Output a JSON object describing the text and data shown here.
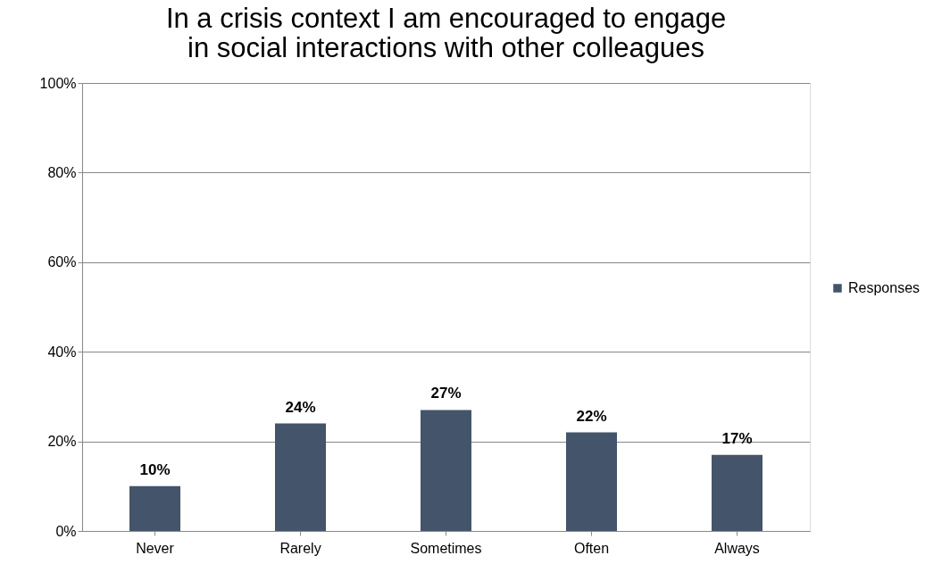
{
  "chart_data": {
    "type": "bar",
    "title": "In a crisis context I am encouraged to engage\nin social interactions with other colleagues",
    "categories": [
      "Never",
      "Rarely",
      "Sometimes",
      "Often",
      "Always"
    ],
    "series": [
      {
        "name": "Responses",
        "color": "#44546a",
        "values": [
          10,
          24,
          27,
          22,
          17
        ],
        "value_labels": [
          "10%",
          "24%",
          "27%",
          "22%",
          "17%"
        ]
      }
    ],
    "ylim": [
      0,
      100
    ],
    "yticks": [
      {
        "value": 0,
        "label": "0%"
      },
      {
        "value": 20,
        "label": "20%"
      },
      {
        "value": 40,
        "label": "40%"
      },
      {
        "value": 60,
        "label": "60%"
      },
      {
        "value": 80,
        "label": "80%"
      },
      {
        "value": 100,
        "label": "100%"
      }
    ],
    "grid": "y",
    "legend": "right"
  }
}
